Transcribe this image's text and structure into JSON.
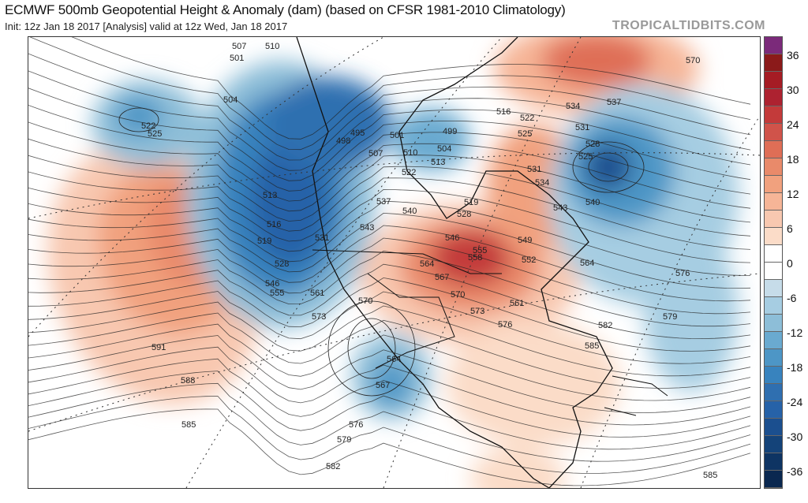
{
  "header": {
    "title": "ECMWF 500mb Geopotential Height & Anomaly (dam) (based on CFSR 1981-2010 Climatology)",
    "subtitle": "Init: 12z Jan 18 2017   [Analysis]   valid at 12z Wed, Jan 18 2017",
    "brand": "TROPICALTIDBITS.COM"
  },
  "colorbar": {
    "ticks": [
      "36",
      "30",
      "24",
      "18",
      "12",
      "6",
      "0",
      "-6",
      "-12",
      "-18",
      "-24",
      "-30",
      "-36"
    ],
    "colors": [
      "#7b2a7a",
      "#8b1a1a",
      "#a51c24",
      "#ad2230",
      "#c33a3a",
      "#d0534a",
      "#df6e56",
      "#e98a6a",
      "#f1a17e",
      "#f6b597",
      "#f8c8b0",
      "#fbdcc8",
      "#ffffff",
      "#ffffff",
      "#c6dce9",
      "#a6cde2",
      "#8dbed8",
      "#6aaad0",
      "#4d96c6",
      "#3883be",
      "#2f6fb0",
      "#2662a8",
      "#1b4f8f",
      "#144379",
      "#0e3463",
      "#0a2850"
    ]
  },
  "contour_labels": [
    "507",
    "510",
    "501",
    "504",
    "522",
    "525",
    "495",
    "498",
    "501",
    "507",
    "510",
    "504",
    "513",
    "499",
    "516",
    "522",
    "525",
    "534",
    "537",
    "531",
    "528",
    "525",
    "540",
    "570",
    "513",
    "516",
    "519",
    "528",
    "531",
    "546",
    "555",
    "561",
    "543",
    "537",
    "540",
    "522",
    "528",
    "519",
    "531",
    "534",
    "543",
    "546",
    "549",
    "555",
    "558",
    "552",
    "564",
    "567",
    "570",
    "573",
    "561",
    "576",
    "564",
    "570",
    "573",
    "576",
    "579",
    "582",
    "585",
    "564",
    "567",
    "576",
    "579",
    "582",
    "591",
    "588",
    "585",
    "585"
  ]
}
